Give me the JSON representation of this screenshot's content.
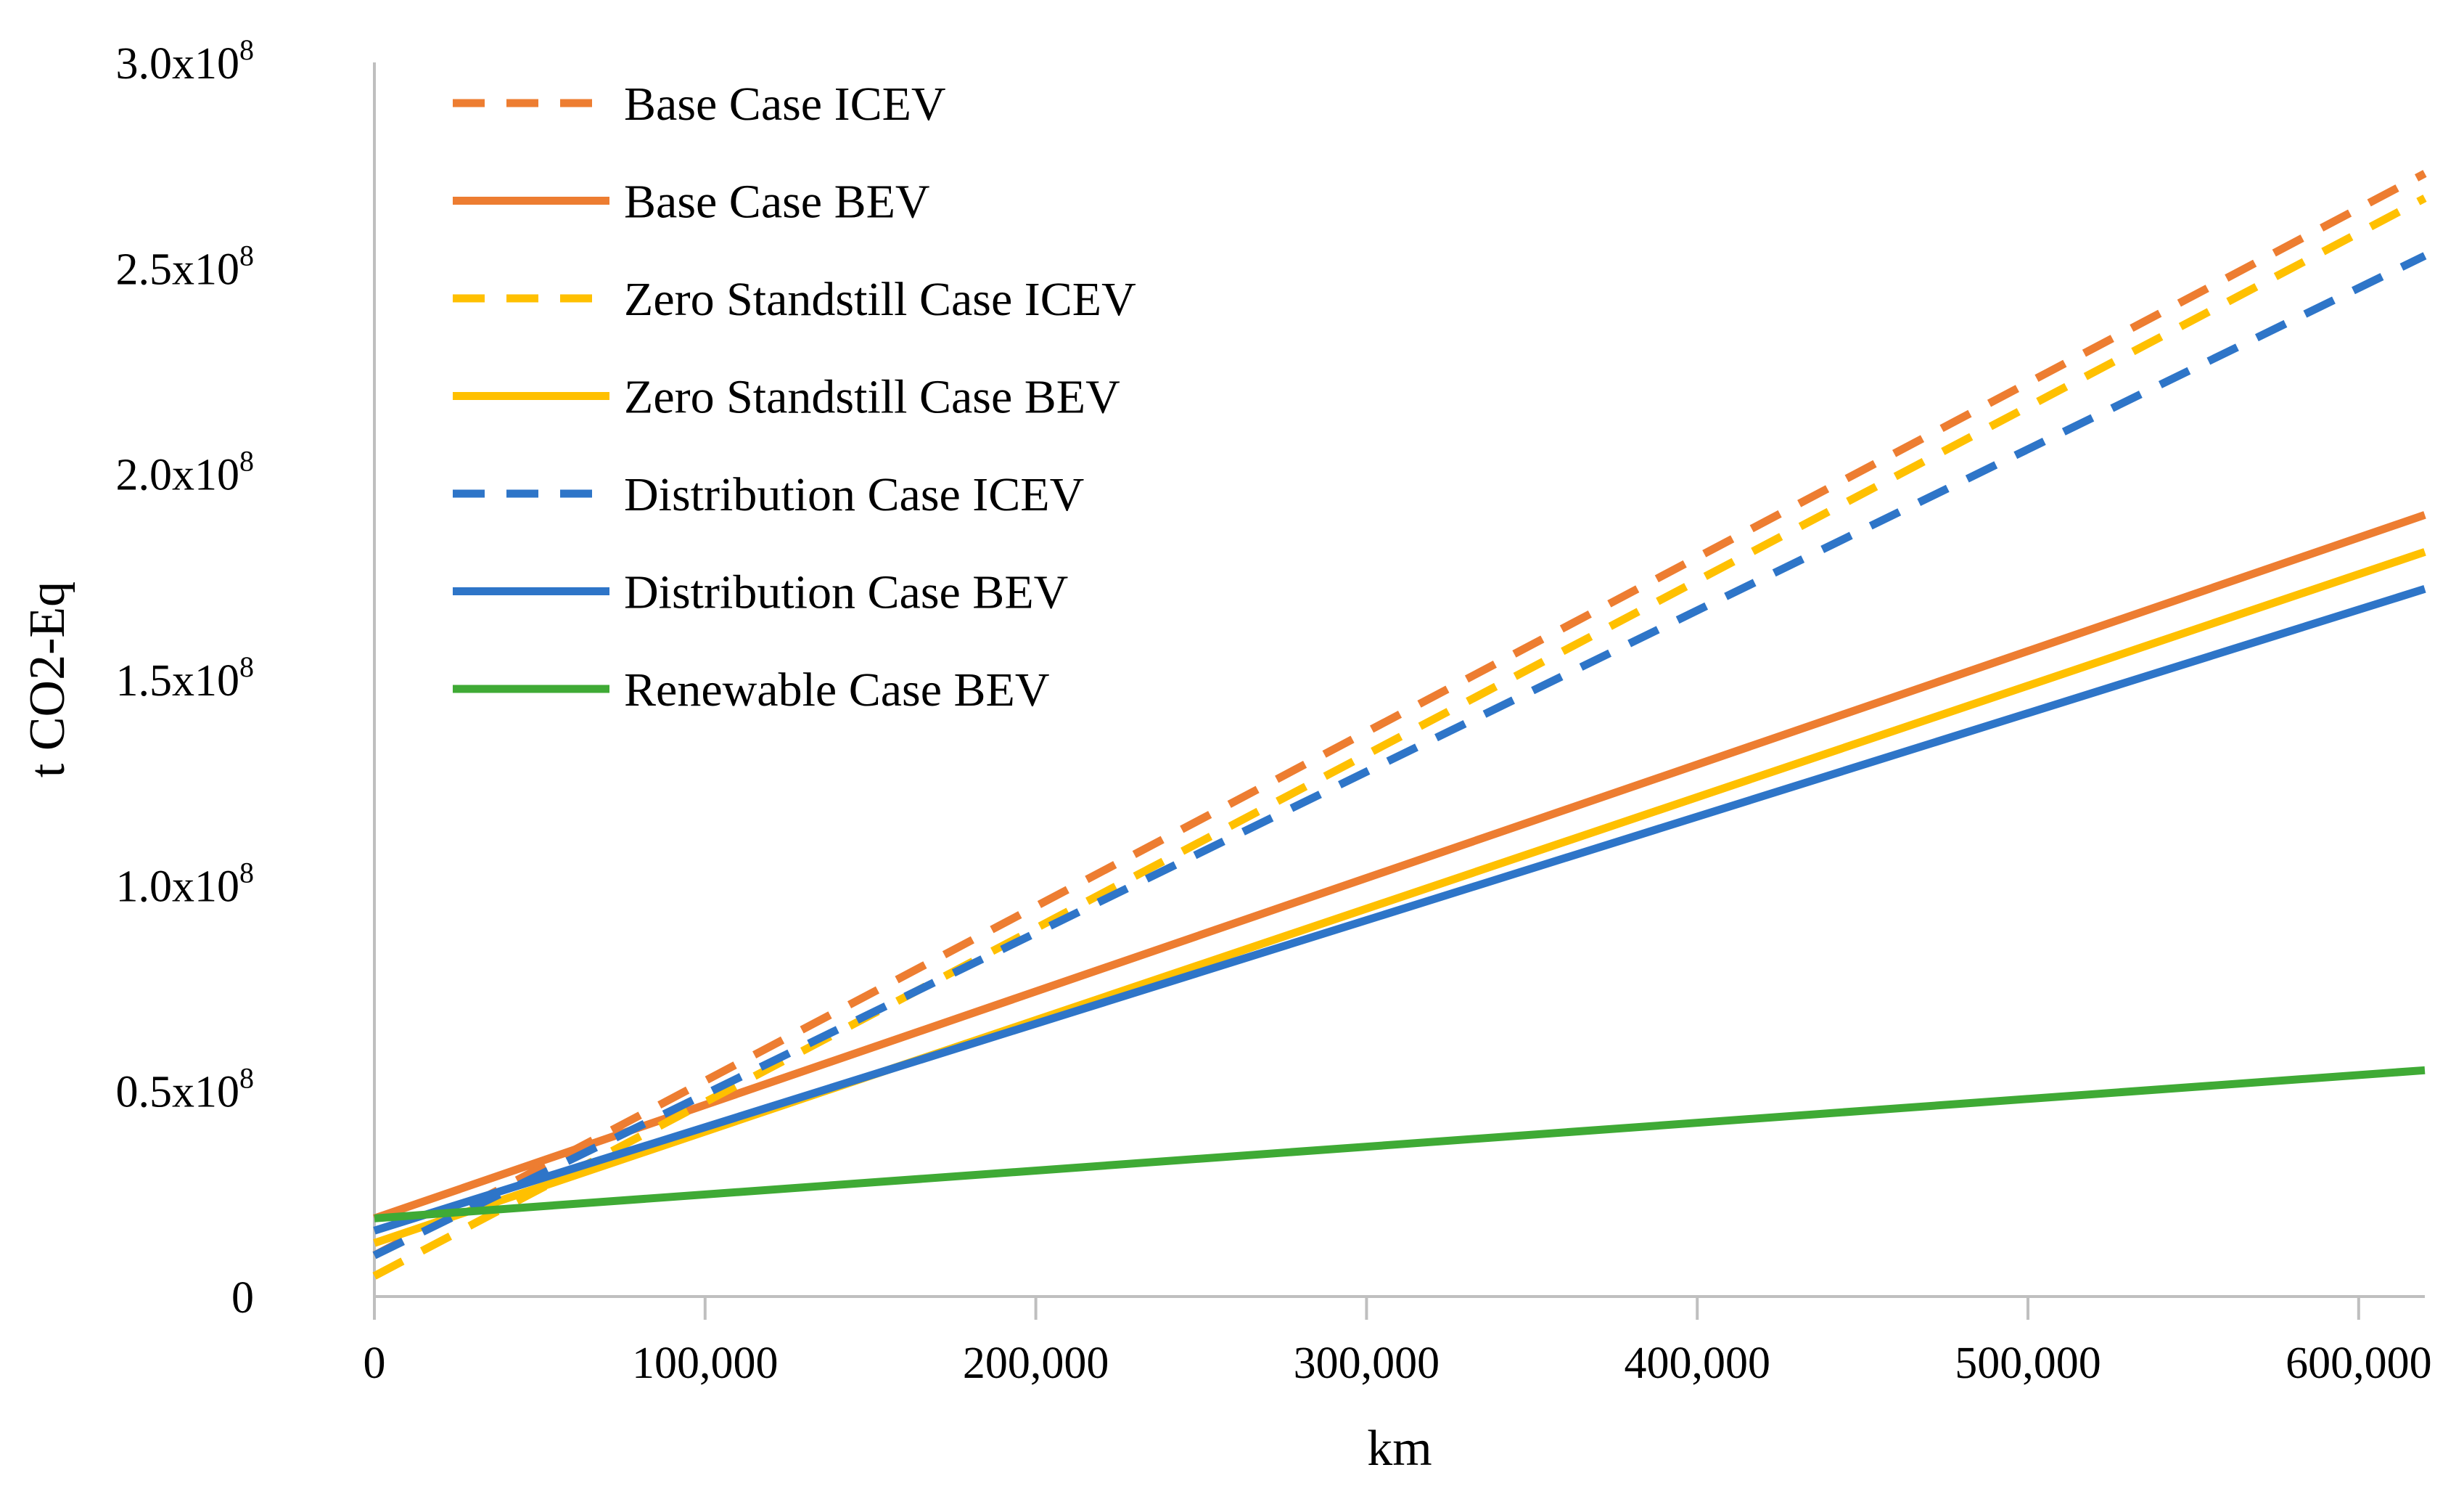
{
  "chart_data": {
    "type": "line",
    "title": "",
    "xlabel": "km",
    "ylabel": "t CO2-Eq",
    "xlim": [
      0,
      620000
    ],
    "ylim": [
      0,
      300000000
    ],
    "x_ticks": [
      0,
      100000,
      200000,
      300000,
      400000,
      500000,
      600000
    ],
    "x_tick_labels": [
      "0",
      "100,000",
      "200,000",
      "300,000",
      "400,000",
      "500,000",
      "600,000"
    ],
    "y_ticks": [
      0,
      50000000,
      100000000,
      150000000,
      200000000,
      250000000,
      300000000
    ],
    "y_tick_labels": [
      {
        "base": "0",
        "exp": ""
      },
      {
        "base": "0.5x10",
        "exp": "8"
      },
      {
        "base": "1.0x10",
        "exp": "8"
      },
      {
        "base": "1.5x10",
        "exp": "8"
      },
      {
        "base": "2.0x10",
        "exp": "8"
      },
      {
        "base": "2.5x10",
        "exp": "8"
      },
      {
        "base": "3.0x10",
        "exp": "8"
      }
    ],
    "grid": false,
    "legend_position": "top-left",
    "x": [
      0,
      620000
    ],
    "series": [
      {
        "name": "Base Case ICEV",
        "values": [
          10000000,
          273000000
        ],
        "color": "#ED7D31",
        "dash": "dashed"
      },
      {
        "name": "Base Case BEV",
        "values": [
          19000000,
          190000000
        ],
        "color": "#ED7D31",
        "dash": "solid"
      },
      {
        "name": "Zero Standstill Case ICEV",
        "values": [
          5000000,
          267000000
        ],
        "color": "#FFC000",
        "dash": "dashed"
      },
      {
        "name": "Zero Standstill Case BEV",
        "values": [
          13000000,
          181000000
        ],
        "color": "#FFC000",
        "dash": "solid"
      },
      {
        "name": "Distribution Case ICEV",
        "values": [
          10000000,
          253000000
        ],
        "color": "#2E75C8",
        "dash": "dashed"
      },
      {
        "name": "Distribution Case BEV",
        "values": [
          16000000,
          172000000
        ],
        "color": "#2E75C8",
        "dash": "solid"
      },
      {
        "name": "Renewable Case BEV",
        "values": [
          19000000,
          55000000
        ],
        "color": "#3FAA35",
        "dash": "solid"
      }
    ]
  }
}
